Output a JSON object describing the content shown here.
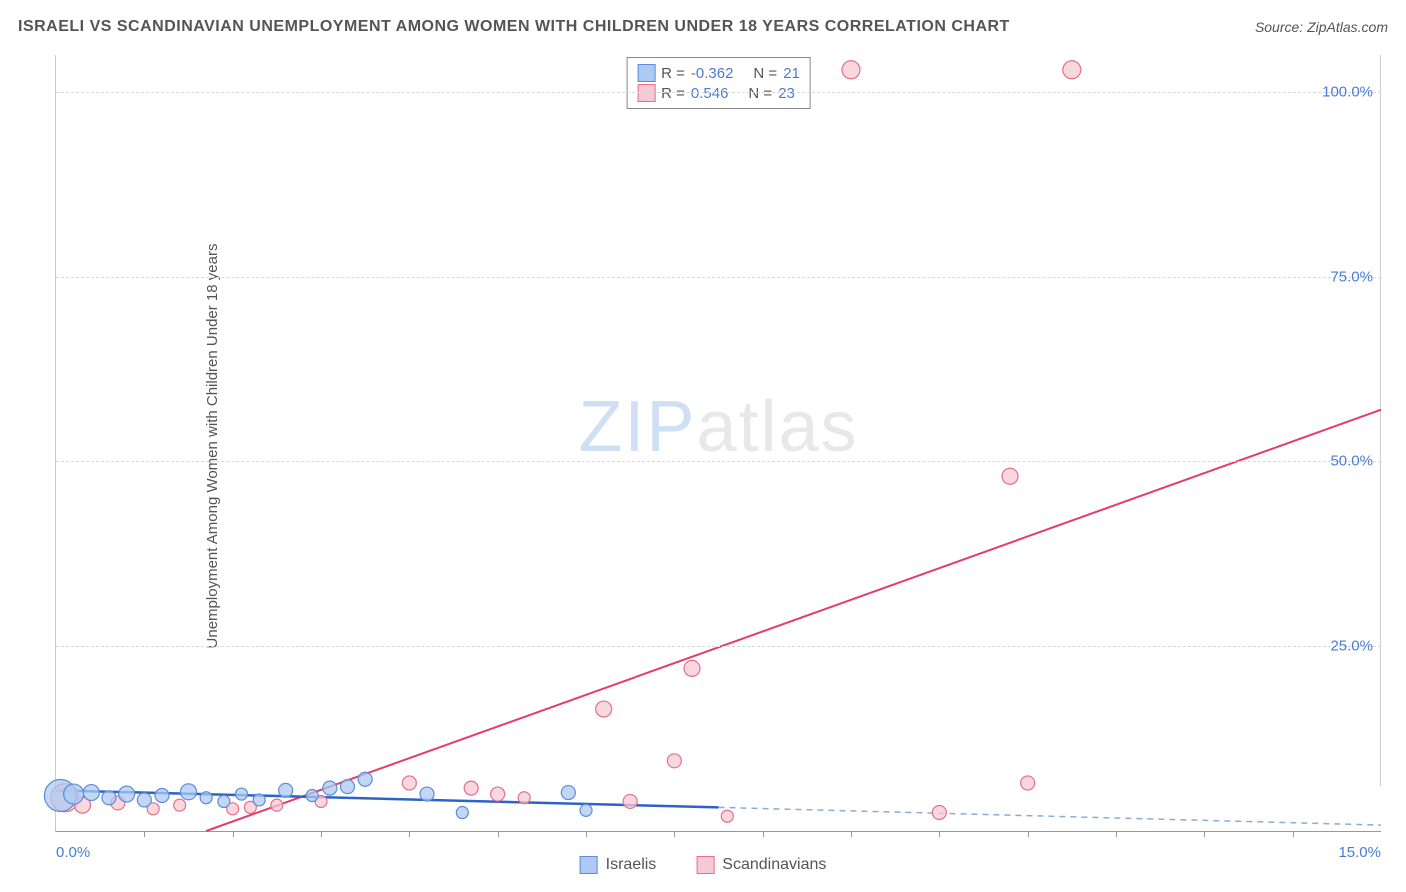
{
  "title": "ISRAELI VS SCANDINAVIAN UNEMPLOYMENT AMONG WOMEN WITH CHILDREN UNDER 18 YEARS CORRELATION CHART",
  "source": "Source: ZipAtlas.com",
  "ylabel": "Unemployment Among Women with Children Under 18 years",
  "watermark_a": "ZIP",
  "watermark_b": "atlas",
  "chart": {
    "type": "scatter",
    "xlim": [
      0,
      15
    ],
    "ylim": [
      0,
      105
    ],
    "yticks": [
      25,
      50,
      75,
      100
    ],
    "ytick_labels": [
      "25.0%",
      "50.0%",
      "75.0%",
      "100.0%"
    ],
    "x_label_min": "0.0%",
    "x_label_max": "15.0%",
    "x_minor_ticks": [
      1,
      2,
      3,
      4,
      5,
      6,
      7,
      8,
      9,
      10,
      11,
      12,
      13,
      14
    ],
    "grid_color": "#d8d8d8",
    "axis_color": "#999999",
    "tick_label_color": "#4a7bd4",
    "background_color": "#ffffff",
    "series": {
      "israelis": {
        "label": "Israelis",
        "fill": "#aecaf2",
        "stroke": "#5d8cd8",
        "line_color": "#2e62c9",
        "dash_color": "#8aabdc",
        "R": "-0.362",
        "N": "21",
        "points": [
          {
            "x": 0.05,
            "y": 4.8,
            "r": 16
          },
          {
            "x": 0.2,
            "y": 5.0,
            "r": 10
          },
          {
            "x": 0.4,
            "y": 5.2,
            "r": 8
          },
          {
            "x": 0.6,
            "y": 4.5,
            "r": 7
          },
          {
            "x": 0.8,
            "y": 5.0,
            "r": 8
          },
          {
            "x": 1.0,
            "y": 4.2,
            "r": 7
          },
          {
            "x": 1.2,
            "y": 4.8,
            "r": 7
          },
          {
            "x": 1.5,
            "y": 5.3,
            "r": 8
          },
          {
            "x": 1.7,
            "y": 4.5,
            "r": 6
          },
          {
            "x": 1.9,
            "y": 4.0,
            "r": 6
          },
          {
            "x": 2.1,
            "y": 5.0,
            "r": 6
          },
          {
            "x": 2.3,
            "y": 4.2,
            "r": 6
          },
          {
            "x": 2.6,
            "y": 5.5,
            "r": 7
          },
          {
            "x": 2.9,
            "y": 4.8,
            "r": 6
          },
          {
            "x": 3.1,
            "y": 5.8,
            "r": 7
          },
          {
            "x": 3.3,
            "y": 6.0,
            "r": 7
          },
          {
            "x": 3.5,
            "y": 7.0,
            "r": 7
          },
          {
            "x": 4.2,
            "y": 5.0,
            "r": 7
          },
          {
            "x": 4.6,
            "y": 2.5,
            "r": 6
          },
          {
            "x": 5.8,
            "y": 5.2,
            "r": 7
          },
          {
            "x": 6.0,
            "y": 2.8,
            "r": 6
          }
        ],
        "trend": {
          "x1": 0,
          "y1": 5.5,
          "x2": 7.5,
          "y2": 3.2,
          "x3": 15,
          "y3": 0.8
        }
      },
      "scandinavians": {
        "label": "Scandinavians",
        "fill": "#f6c9d4",
        "stroke": "#e56f8e",
        "line_color": "#e23d6d",
        "R": "0.546",
        "N": "23",
        "points": [
          {
            "x": 0.1,
            "y": 4.5,
            "r": 14
          },
          {
            "x": 0.3,
            "y": 3.5,
            "r": 8
          },
          {
            "x": 0.7,
            "y": 3.8,
            "r": 7
          },
          {
            "x": 1.1,
            "y": 3.0,
            "r": 6
          },
          {
            "x": 1.4,
            "y": 3.5,
            "r": 6
          },
          {
            "x": 2.0,
            "y": 3.0,
            "r": 6
          },
          {
            "x": 2.2,
            "y": 3.2,
            "r": 6
          },
          {
            "x": 2.5,
            "y": 3.5,
            "r": 6
          },
          {
            "x": 3.0,
            "y": 4.0,
            "r": 6
          },
          {
            "x": 4.0,
            "y": 6.5,
            "r": 7
          },
          {
            "x": 4.7,
            "y": 5.8,
            "r": 7
          },
          {
            "x": 5.0,
            "y": 5.0,
            "r": 7
          },
          {
            "x": 5.3,
            "y": 4.5,
            "r": 6
          },
          {
            "x": 6.2,
            "y": 16.5,
            "r": 8
          },
          {
            "x": 6.5,
            "y": 4.0,
            "r": 7
          },
          {
            "x": 7.0,
            "y": 9.5,
            "r": 7
          },
          {
            "x": 7.2,
            "y": 22.0,
            "r": 8
          },
          {
            "x": 7.6,
            "y": 2.0,
            "r": 6
          },
          {
            "x": 9.0,
            "y": 103,
            "r": 9
          },
          {
            "x": 10.0,
            "y": 2.5,
            "r": 7
          },
          {
            "x": 10.8,
            "y": 48.0,
            "r": 8
          },
          {
            "x": 11.0,
            "y": 6.5,
            "r": 7
          },
          {
            "x": 11.5,
            "y": 103,
            "r": 9
          }
        ],
        "trend": {
          "x1": 1.7,
          "y1": 0,
          "x2": 15,
          "y2": 57
        }
      }
    }
  },
  "legend_top": {
    "r_label": "R =",
    "n_label": "N ="
  }
}
